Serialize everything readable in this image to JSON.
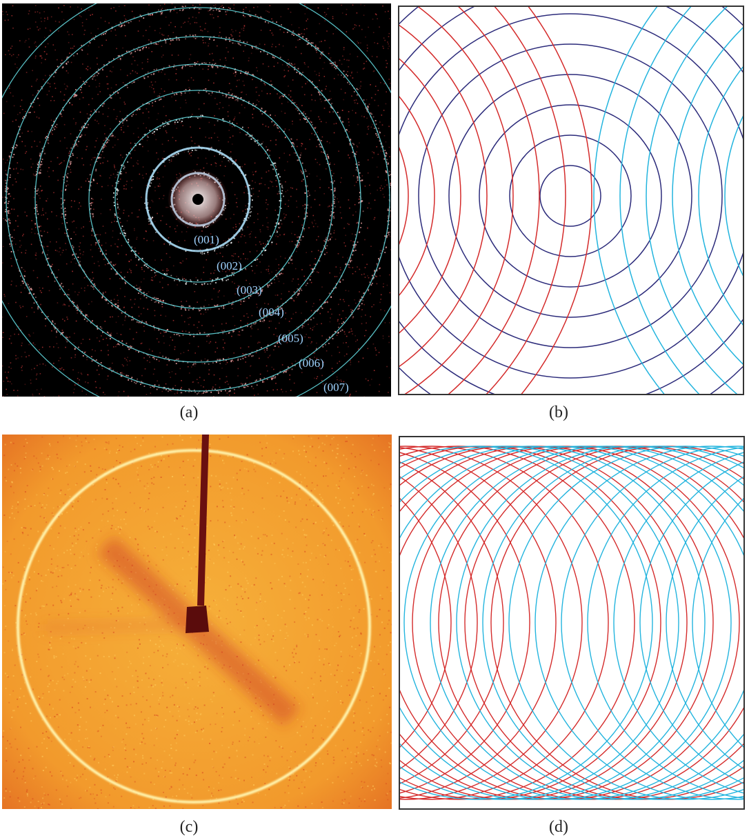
{
  "figure": {
    "panels": [
      {
        "id": "a",
        "caption": "(a)"
      },
      {
        "id": "b",
        "caption": "(b)"
      },
      {
        "id": "c",
        "caption": "(c)"
      },
      {
        "id": "d",
        "caption": "(d)"
      }
    ],
    "ring_labels": [
      "(001)",
      "(002)",
      "(003)",
      "(004)",
      "(005)",
      "(006)",
      "(007)"
    ],
    "colors": {
      "ring_cyan": "#5fd3d8",
      "speckle_red": "#d03a3a",
      "line_red": "#d42a2a",
      "line_navy": "#2b2a7a",
      "line_cyan": "#22b4de",
      "detector_orange": "#f09a2a",
      "detector_ring": "#fff6b0",
      "beamstop": "#6a1010"
    }
  }
}
